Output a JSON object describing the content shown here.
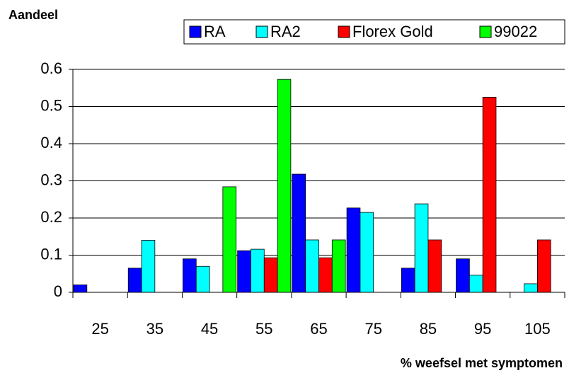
{
  "chart_data": {
    "type": "bar",
    "ylabel": "Aandeel",
    "xlabel": "% weefsel met symptomen",
    "categories": [
      25,
      35,
      45,
      55,
      65,
      75,
      85,
      95,
      105
    ],
    "series": [
      {
        "name": "RA",
        "color": "#0000ff",
        "values": [
          0.02,
          0.065,
          0.09,
          0.112,
          0.318,
          0.227,
          0.065,
          0.09,
          0
        ]
      },
      {
        "name": "RA2",
        "color": "#00ffff",
        "values": [
          0,
          0.14,
          0.07,
          0.116,
          0.141,
          0.215,
          0.238,
          0.046,
          0.023
        ]
      },
      {
        "name": "Florex Gold",
        "color": "#ff0000",
        "values": [
          0,
          0,
          0,
          0.093,
          0.093,
          0,
          0.141,
          0.525,
          0.141
        ]
      },
      {
        "name": "99022",
        "color": "#00ff00",
        "values": [
          0,
          0,
          0.284,
          0.573,
          0.141,
          0,
          0,
          0,
          0
        ]
      }
    ],
    "ylim": [
      0,
      0.6
    ],
    "yticks": [
      0,
      0.1,
      0.2,
      0.3,
      0.4,
      0.5,
      0.6
    ],
    "grid": true,
    "legend": "top"
  }
}
